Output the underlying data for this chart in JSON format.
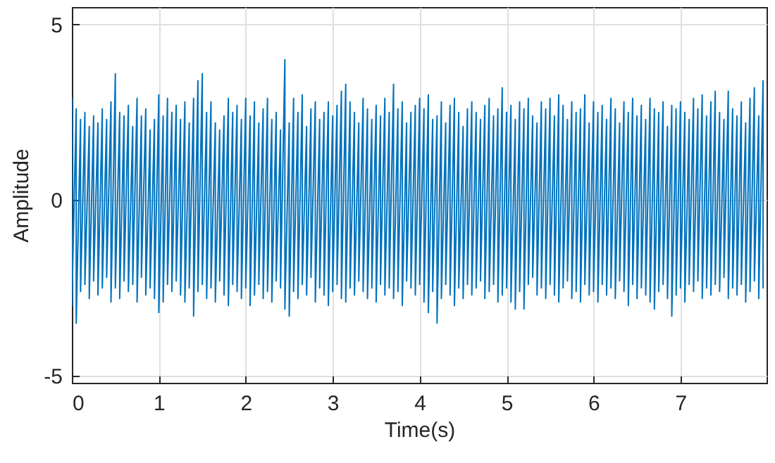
{
  "chart_data": {
    "type": "line",
    "xlabel": "Time(s)",
    "ylabel": "Amplitude",
    "xlim": [
      0,
      7.99
    ],
    "xticks": [
      0,
      1,
      2,
      3,
      4,
      5,
      6,
      7
    ],
    "ylim": [
      -5.2,
      5.5
    ],
    "yticks": [
      -5,
      0,
      5
    ],
    "grid": true,
    "line_style": "solid",
    "series": [
      {
        "color": "#0072bd",
        "x": [
          0,
          0,
          0.05,
          0.05,
          0.1,
          0.1,
          0.15,
          0.15,
          0.2,
          0.2,
          0.25,
          0.25,
          0.3,
          0.3,
          0.35,
          0.35,
          0.4,
          0.4,
          0.45,
          0.45,
          0.5,
          0.5,
          0.55,
          0.55,
          0.6,
          0.6,
          0.65,
          0.65,
          0.7,
          0.7,
          0.75,
          0.75,
          0.8,
          0.8,
          0.85,
          0.85,
          0.9,
          0.9,
          0.95,
          0.95,
          1,
          1,
          1.05,
          1.05,
          1.1,
          1.1,
          1.15,
          1.15,
          1.2,
          1.2,
          1.25,
          1.25,
          1.3,
          1.3,
          1.35,
          1.35,
          1.4,
          1.4,
          1.45,
          1.45,
          1.5,
          1.5,
          1.55,
          1.55,
          1.6,
          1.6,
          1.65,
          1.65,
          1.7,
          1.7,
          1.75,
          1.75,
          1.8,
          1.8,
          1.85,
          1.85,
          1.9,
          1.9,
          1.95,
          1.95,
          2,
          2,
          2.05,
          2.05,
          2.1,
          2.1,
          2.15,
          2.15,
          2.2,
          2.2,
          2.25,
          2.25,
          2.3,
          2.3,
          2.35,
          2.35,
          2.4,
          2.4,
          2.45,
          2.45,
          2.5,
          2.5,
          2.55,
          2.55,
          2.6,
          2.6,
          2.65,
          2.65,
          2.7,
          2.7,
          2.75,
          2.75,
          2.8,
          2.8,
          2.85,
          2.85,
          2.9,
          2.9,
          2.95,
          2.95,
          3,
          3,
          3.05,
          3.05,
          3.1,
          3.1,
          3.15,
          3.15,
          3.2,
          3.2,
          3.25,
          3.25,
          3.3,
          3.3,
          3.35,
          3.35,
          3.4,
          3.4,
          3.45,
          3.45,
          3.5,
          3.5,
          3.55,
          3.55,
          3.6,
          3.6,
          3.65,
          3.65,
          3.7,
          3.7,
          3.75,
          3.75,
          3.8,
          3.8,
          3.85,
          3.85,
          3.9,
          3.9,
          3.95,
          3.95,
          4,
          4,
          4.05,
          4.05,
          4.1,
          4.1,
          4.15,
          4.15,
          4.2,
          4.2,
          4.25,
          4.25,
          4.3,
          4.3,
          4.35,
          4.35,
          4.4,
          4.4,
          4.45,
          4.45,
          4.5,
          4.5,
          4.55,
          4.55,
          4.6,
          4.6,
          4.65,
          4.65,
          4.7,
          4.7,
          4.75,
          4.75,
          4.8,
          4.8,
          4.85,
          4.85,
          4.9,
          4.9,
          4.95,
          4.95,
          5,
          5,
          5.05,
          5.05,
          5.1,
          5.1,
          5.15,
          5.15,
          5.2,
          5.2,
          5.25,
          5.25,
          5.3,
          5.3,
          5.35,
          5.35,
          5.4,
          5.4,
          5.45,
          5.45,
          5.5,
          5.5,
          5.55,
          5.55,
          5.6,
          5.6,
          5.65,
          5.65,
          5.7,
          5.7,
          5.75,
          5.75,
          5.8,
          5.8,
          5.85,
          5.85,
          5.9,
          5.9,
          5.95,
          5.95,
          6,
          6,
          6.05,
          6.05,
          6.1,
          6.1,
          6.15,
          6.15,
          6.2,
          6.2,
          6.25,
          6.25,
          6.3,
          6.3,
          6.35,
          6.35,
          6.4,
          6.4,
          6.45,
          6.45,
          6.5,
          6.5,
          6.55,
          6.55,
          6.6,
          6.6,
          6.65,
          6.65,
          6.7,
          6.7,
          6.75,
          6.75,
          6.8,
          6.8,
          6.85,
          6.85,
          6.9,
          6.9,
          6.95,
          6.95,
          7,
          7,
          7.05,
          7.05,
          7.1,
          7.1,
          7.15,
          7.15,
          7.2,
          7.2,
          7.25,
          7.25,
          7.3,
          7.3,
          7.35,
          7.35,
          7.4,
          7.4,
          7.45,
          7.45,
          7.5,
          7.5,
          7.55,
          7.55,
          7.6,
          7.6,
          7.65,
          7.65,
          7.7,
          7.7,
          7.75,
          7.75,
          7.8,
          7.8,
          7.85,
          7.85,
          7.9,
          7.9,
          7.95,
          7.95
        ],
        "values": [
          2.9,
          -3.0,
          2.6,
          -3.5,
          2.3,
          -2.6,
          2.5,
          -2.4,
          2.1,
          -2.8,
          2.4,
          -2.3,
          2.2,
          -2.7,
          2.6,
          -2.5,
          2.3,
          -2.2,
          2.8,
          -2.9,
          3.6,
          -2.5,
          2.5,
          -2.8,
          2.4,
          -2.3,
          2.7,
          -2.6,
          2.1,
          -2.4,
          2.9,
          -2.9,
          2.4,
          -2.2,
          2.6,
          -2.7,
          2.0,
          -2.5,
          2.3,
          -2.8,
          3.0,
          -3.2,
          2.4,
          -2.9,
          2.9,
          -2.4,
          2.5,
          -2.6,
          2.7,
          -2.3,
          2.3,
          -2.7,
          2.8,
          -2.9,
          2.2,
          -2.5,
          2.9,
          -3.3,
          3.4,
          -2.6,
          3.6,
          -2.4,
          2.5,
          -2.8,
          2.8,
          -2.5,
          2.2,
          -2.9,
          2.0,
          -2.3,
          2.4,
          -2.7,
          2.9,
          -3.0,
          2.5,
          -2.4,
          2.7,
          -2.6,
          2.3,
          -2.8,
          2.9,
          -2.5,
          2.4,
          -3.0,
          2.8,
          -2.7,
          2.2,
          -2.4,
          2.6,
          -2.8,
          2.9,
          -2.6,
          2.3,
          -2.9,
          2.5,
          -2.3,
          2.0,
          -2.5,
          4.0,
          -3.1,
          2.2,
          -3.3,
          2.9,
          -2.6,
          2.5,
          -2.8,
          3.0,
          -2.4,
          2.1,
          -2.7,
          2.6,
          -2.2,
          2.8,
          -2.9,
          2.3,
          -2.5,
          2.5,
          -2.7,
          2.8,
          -3.0,
          2.4,
          -2.6,
          2.7,
          -2.4,
          3.1,
          -2.8,
          3.3,
          -2.9,
          2.8,
          -2.5,
          2.5,
          -2.7,
          2.2,
          -2.3,
          2.9,
          -2.6,
          2.6,
          -2.8,
          2.3,
          -2.5,
          2.7,
          -2.9,
          2.4,
          -2.4,
          2.9,
          -2.7,
          2.5,
          -2.5,
          3.3,
          -2.8,
          2.6,
          -2.6,
          2.8,
          -3.0,
          2.2,
          -2.3,
          2.5,
          -2.5,
          2.7,
          -2.7,
          2.9,
          -2.4,
          2.6,
          -2.9,
          3.0,
          -3.2,
          2.3,
          -2.6,
          2.4,
          -3.5,
          2.8,
          -2.8,
          2.2,
          -2.4,
          2.7,
          -2.7,
          2.9,
          -3.0,
          2.5,
          -2.5,
          2.1,
          -2.8,
          2.6,
          -2.4,
          2.8,
          -2.7,
          2.5,
          -2.5,
          2.3,
          -2.3,
          2.7,
          -2.8,
          2.9,
          -2.6,
          2.4,
          -2.4,
          2.6,
          -2.9,
          3.2,
          -2.7,
          2.5,
          -2.5,
          2.7,
          -2.9,
          2.3,
          -3.1,
          2.8,
          -2.6,
          2.6,
          -3.1,
          2.9,
          -2.4,
          2.4,
          -2.2,
          2.2,
          -2.7,
          2.8,
          -2.5,
          2.6,
          -2.8,
          2.9,
          -2.4,
          2.4,
          -2.7,
          3.0,
          -2.9,
          2.7,
          -2.5,
          2.3,
          -2.3,
          2.8,
          -2.8,
          2.5,
          -2.6,
          2.6,
          -2.9,
          3.0,
          -2.4,
          2.2,
          -2.7,
          2.8,
          -2.6,
          2.5,
          -2.9,
          2.7,
          -2.4,
          2.3,
          -2.7,
          2.9,
          -2.5,
          2.6,
          -2.8,
          2.2,
          -2.3,
          2.8,
          -2.6,
          2.5,
          -3.0,
          2.9,
          -2.4,
          2.4,
          -2.8,
          2.7,
          -2.5,
          2.3,
          -2.7,
          2.9,
          -2.9,
          2.6,
          -3.1,
          2.5,
          -2.6,
          2.8,
          -2.4,
          2.1,
          -2.8,
          2.7,
          -3.3,
          2.6,
          -2.7,
          2.8,
          -2.5,
          2.5,
          -2.9,
          2.3,
          -2.4,
          2.9,
          -2.6,
          2.6,
          -2.3,
          3.0,
          -2.8,
          2.4,
          -2.5,
          2.8,
          -2.7,
          3.1,
          -2.4,
          2.5,
          -2.6,
          2.3,
          -2.2,
          3.1,
          -2.8,
          2.6,
          -2.5,
          2.4,
          -2.7,
          2.8,
          -2.4,
          2.2,
          -2.9,
          2.9,
          -2.6,
          3.2,
          -2.3,
          2.4,
          -2.8,
          3.4,
          -2.5
        ]
      }
    ]
  }
}
